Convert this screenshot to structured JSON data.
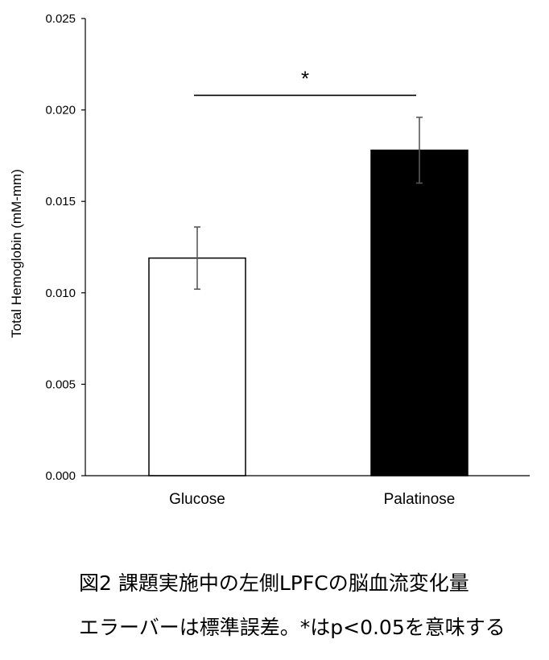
{
  "chart_data": {
    "type": "bar",
    "categories": [
      "Glucose",
      "Palatinose"
    ],
    "values": [
      0.0119,
      0.0178
    ],
    "errors": [
      0.0017,
      0.0018
    ],
    "bar_colors": [
      "#ffffff",
      "#000000"
    ],
    "bar_stroke": "#000000",
    "ylabel": "Total Hemoglobin (mM-mm)",
    "ylim": [
      0,
      0.025
    ],
    "yticks": [
      "0.000",
      "0.005",
      "0.010",
      "0.015",
      "0.020",
      "0.025"
    ],
    "significance": {
      "label": "*",
      "between": [
        "Glucose",
        "Palatinose"
      ],
      "level": 0.0208
    },
    "grid": false,
    "legend": "none"
  },
  "caption": {
    "line1": "図2  課題実施中の左側LPFCの脳血流変化量",
    "line2": "エラーバーは標準誤差。*はp<0.05を意味する"
  }
}
